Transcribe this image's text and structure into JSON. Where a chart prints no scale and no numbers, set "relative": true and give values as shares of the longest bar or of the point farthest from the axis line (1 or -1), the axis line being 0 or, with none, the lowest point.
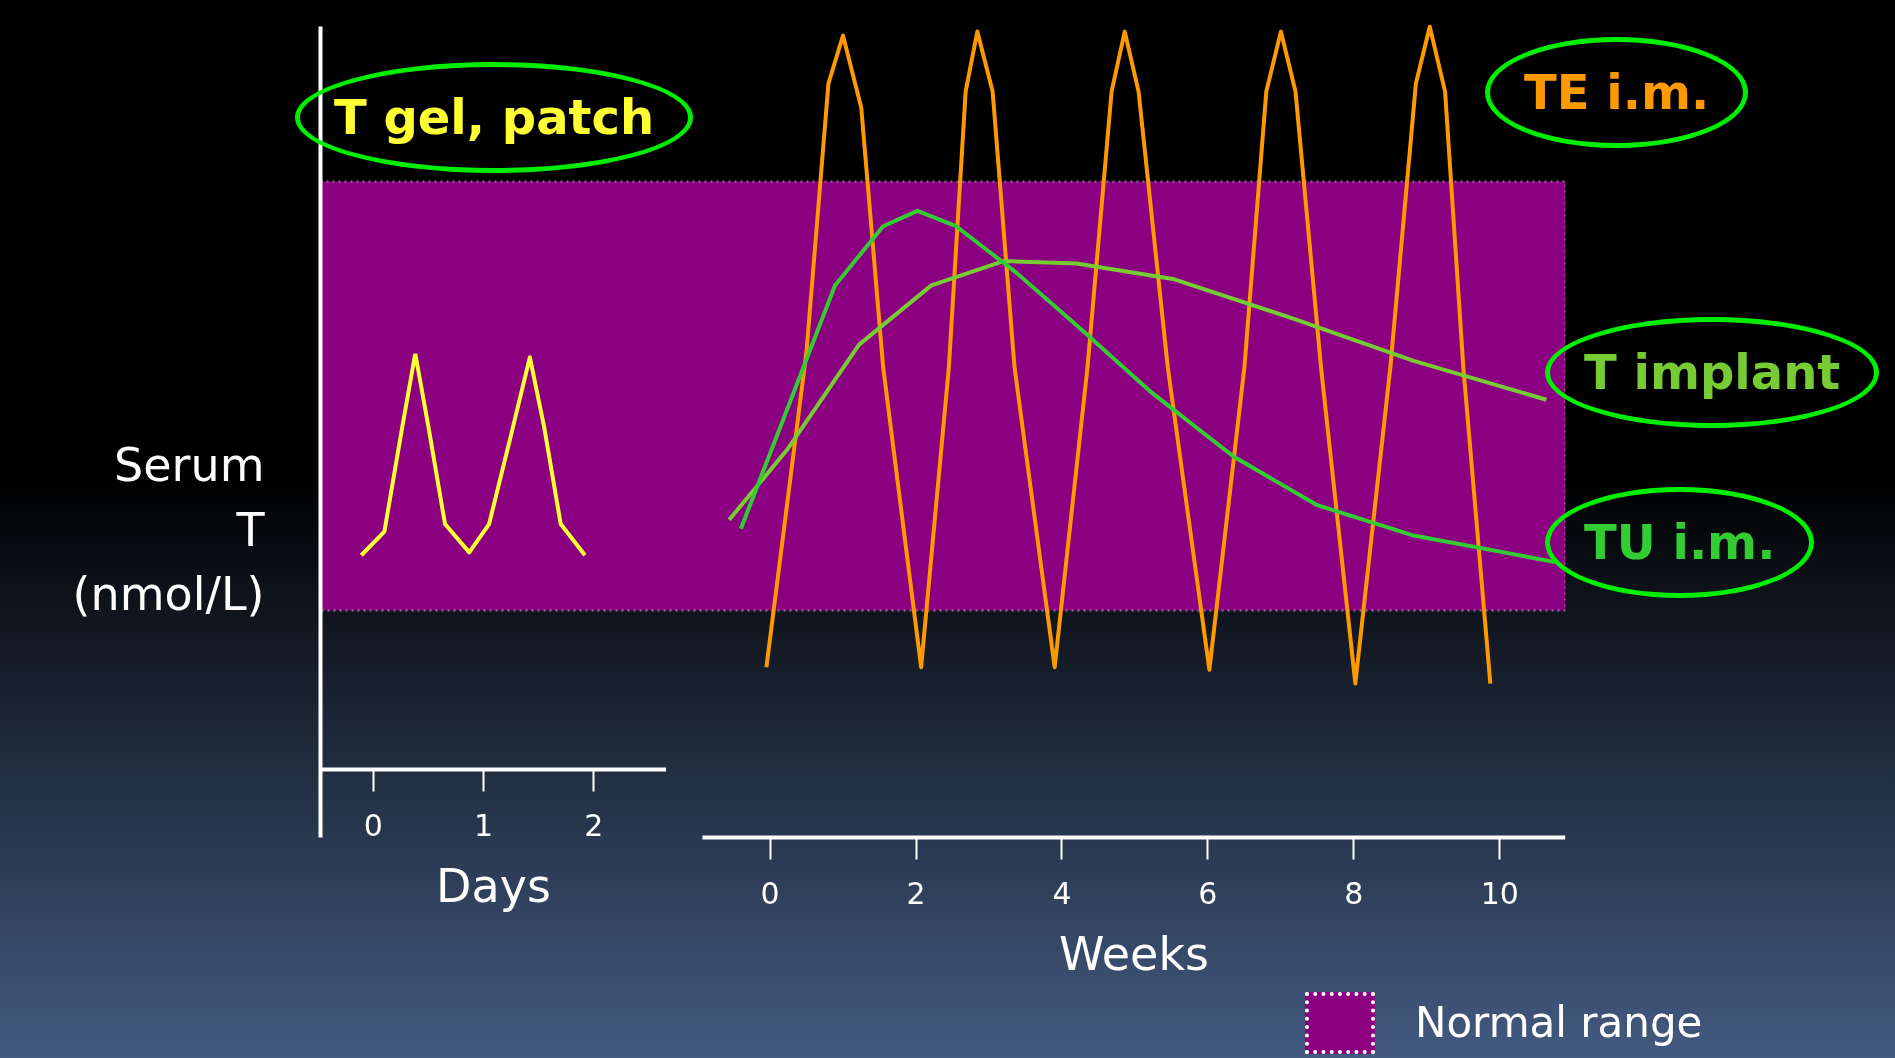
{
  "chart_data": [
    {
      "type": "line",
      "xlabel": "Days",
      "relative": true,
      "xlim": [
        -0.48,
        2.66
      ],
      "xticks": [
        0,
        1,
        2
      ],
      "tick_labels": "x",
      "series": [
        {
          "name": "T gel, patch",
          "color": "#ffff33",
          "x": [
            -0.11,
            0.1,
            0.25,
            0.38,
            0.5,
            0.65,
            0.87,
            1.05,
            1.25,
            1.42,
            1.55,
            1.7,
            1.92
          ],
          "values": [
            0.515,
            0.572,
            0.805,
            1.0,
            0.823,
            0.59,
            0.522,
            0.59,
            0.805,
            0.991,
            0.823,
            0.59,
            0.515
          ]
        }
      ]
    },
    {
      "type": "line",
      "xlabel": "Weeks",
      "ylabel": "Serum T (nmol/L)",
      "relative": true,
      "xlim": [
        -0.93,
        10.9
      ],
      "xticks": [
        0,
        2,
        4,
        6,
        8,
        10
      ],
      "tick_labels": "x",
      "bands": [
        {
          "axis": "y",
          "from": 0.28,
          "to": 0.809,
          "label": "Normal range",
          "color": "#8a0080"
        }
      ],
      "series": [
        {
          "name": "TE i.m.",
          "color": "#ff9900",
          "x": [
            -0.05,
            0.5,
            0.8,
            1.0,
            1.25,
            1.55,
            2.07,
            2.45,
            2.68,
            2.84,
            3.05,
            3.35,
            3.9,
            4.35,
            4.68,
            4.86,
            5.05,
            5.45,
            6.02,
            6.5,
            6.8,
            7.0,
            7.2,
            7.55,
            8.02,
            8.5,
            8.85,
            9.04,
            9.25,
            9.5,
            9.87
          ],
          "values": [
            0.21,
            0.6,
            0.93,
            0.989,
            0.9,
            0.58,
            0.21,
            0.58,
            0.92,
            0.994,
            0.92,
            0.58,
            0.21,
            0.58,
            0.92,
            0.994,
            0.92,
            0.58,
            0.207,
            0.58,
            0.92,
            0.994,
            0.92,
            0.58,
            0.19,
            0.58,
            0.93,
            1.0,
            0.92,
            0.58,
            0.19
          ]
        },
        {
          "name": "T implant",
          "color": "#77cc33",
          "x": [
            -0.56,
            0.23,
            1.22,
            2.21,
            3.2,
            4.2,
            5.52,
            7.17,
            8.82,
            10.64
          ],
          "values": [
            0.392,
            0.478,
            0.608,
            0.681,
            0.711,
            0.708,
            0.689,
            0.64,
            0.588,
            0.54
          ]
        },
        {
          "name": "TU i.m.",
          "color": "#33cc33",
          "x": [
            -0.4,
            0.23,
            0.89,
            1.55,
            2.02,
            2.55,
            3.37,
            4.2,
            5.2,
            6.35,
            7.5,
            8.8,
            10.75
          ],
          "values": [
            0.381,
            0.527,
            0.681,
            0.754,
            0.773,
            0.754,
            0.697,
            0.632,
            0.551,
            0.47,
            0.41,
            0.373,
            0.34
          ]
        }
      ]
    }
  ]
}
